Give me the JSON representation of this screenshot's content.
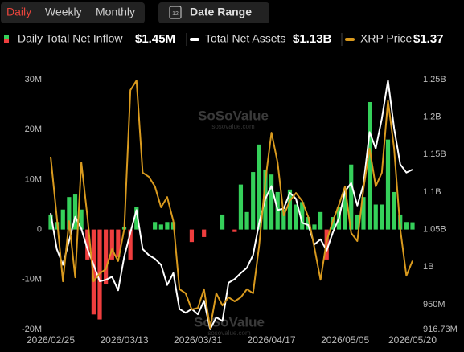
{
  "controls": {
    "periods": [
      "Daily",
      "Weekly",
      "Monthly"
    ],
    "date_range": "Date Range",
    "date_icon_day": "12"
  },
  "chart_data": {
    "type": "bar-line",
    "watermark": "SoSoValue",
    "watermark_sub": "sosovalue.com",
    "categories": [
      "2026/02/25",
      null,
      null,
      null,
      null,
      null,
      null,
      null,
      null,
      null,
      null,
      null,
      "2026/03/13",
      null,
      null,
      null,
      null,
      null,
      null,
      null,
      null,
      null,
      null,
      null,
      "2026/03/31",
      null,
      null,
      null,
      null,
      null,
      null,
      null,
      null,
      null,
      null,
      null,
      "2026/04/17",
      null,
      null,
      null,
      null,
      null,
      null,
      null,
      null,
      null,
      null,
      null,
      "2026/05/05",
      null,
      null,
      null,
      null,
      null,
      null,
      null,
      null,
      null,
      null,
      "2026/05/20"
    ],
    "ylim": [
      -20,
      30
    ],
    "yticks": [
      {
        "value": 30,
        "label": "30M"
      },
      {
        "value": 20,
        "label": "20M"
      },
      {
        "value": 10,
        "label": "10M"
      },
      0,
      {
        "value": -10,
        "label": "-10M"
      },
      {
        "value": -20,
        "label": "-20M"
      }
    ],
    "y2lim": [
      0.91673,
      1.25
    ],
    "y2ticks": [
      {
        "value": 1.25,
        "label": "1.25B"
      },
      {
        "value": 1.2,
        "label": "1.2B"
      },
      {
        "value": 1.15,
        "label": "1.15B"
      },
      {
        "value": 1.1,
        "label": "1.1B"
      },
      {
        "value": 1.05,
        "label": "1.05B"
      },
      {
        "value": 1,
        "label": "1B"
      },
      {
        "value": 0.95,
        "label": "950M"
      },
      {
        "value": 0.91673,
        "label": "916.73M"
      }
    ],
    "y3lim": [
      1.15,
      1.95
    ],
    "grid": false,
    "series": [
      {
        "name": "Daily Total Net Inflow",
        "legend_value": "$1.45M",
        "type": "bar",
        "color": "#35d05a",
        "color_negative": "#ef3e3e",
        "values": [
          3,
          1.5,
          4,
          6.5,
          7,
          4,
          -6,
          -17,
          -18,
          -11,
          -6,
          -5.5,
          0.5,
          -6,
          4.5,
          0,
          0,
          1.5,
          1,
          1.5,
          1.5,
          0,
          0,
          -2.5,
          0,
          -1.5,
          0,
          0,
          3,
          0,
          -0.5,
          9,
          3.5,
          11.5,
          17,
          12,
          11,
          7.5,
          4,
          8,
          5,
          5.5,
          2.5,
          1,
          3.5,
          -6,
          2.5,
          4.5,
          8,
          13,
          3,
          6.5,
          25.5,
          5,
          5,
          18,
          7.5,
          3,
          1.5,
          1.45
        ]
      },
      {
        "name": "Total Net Assets",
        "legend_value": "$1.13B",
        "type": "line",
        "axis": "y2",
        "color": "#ffffff",
        "values": [
          1.072,
          1.024,
          1.003,
          1.035,
          1.067,
          1.051,
          1.024,
          1.003,
          0.981,
          0.983,
          0.987,
          0.969,
          1.014,
          1.046,
          1.076,
          1.024,
          1.016,
          1.011,
          1.003,
          0.976,
          0.992,
          0.944,
          0.939,
          0.944,
          0.937,
          0.955,
          0.917,
          0.933,
          0.928,
          0.979,
          0.984,
          0.992,
          0.999,
          1.016,
          1.059,
          1.091,
          1.108,
          1.076,
          1.078,
          1.099,
          1.091,
          1.059,
          1.056,
          1.03,
          1.037,
          1.022,
          1.046,
          1.065,
          1.101,
          1.112,
          1.082,
          1.11,
          1.18,
          1.158,
          1.198,
          1.249,
          1.185,
          1.137,
          1.126,
          1.13
        ]
      },
      {
        "name": "XRP Price",
        "legend_value": "$1.37",
        "type": "line",
        "axis": "y3",
        "color": "#d99a1e",
        "values": [
          1.703,
          1.51,
          1.304,
          1.497,
          1.317,
          1.685,
          1.51,
          1.304,
          1.33,
          1.343,
          1.407,
          1.369,
          1.472,
          1.916,
          1.947,
          1.652,
          1.639,
          1.608,
          1.541,
          1.574,
          1.497,
          1.279,
          1.266,
          1.214,
          1.219,
          1.279,
          1.155,
          1.266,
          1.227,
          1.253,
          1.24,
          1.253,
          1.279,
          1.266,
          1.42,
          1.626,
          1.78,
          1.685,
          1.515,
          1.562,
          1.587,
          1.562,
          1.51,
          1.412,
          1.309,
          1.433,
          1.497,
          1.549,
          1.608,
          1.459,
          1.433,
          1.6,
          1.729,
          1.608,
          1.652,
          1.883,
          1.729,
          1.472,
          1.322,
          1.37
        ]
      }
    ]
  }
}
